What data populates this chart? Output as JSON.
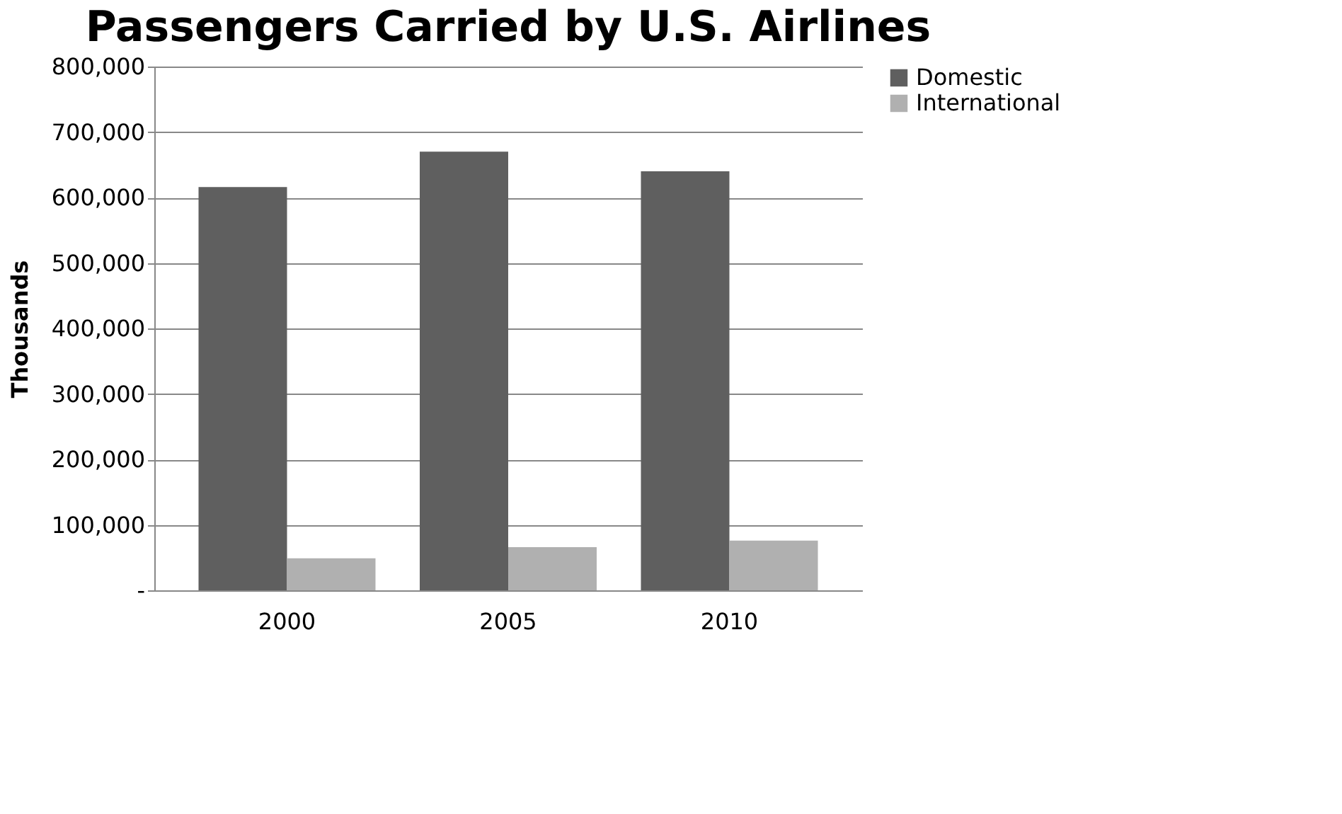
{
  "chart_data": {
    "type": "bar",
    "title": "Passengers Carried by U.S. Airlines",
    "ylabel": "Thousands",
    "categories": [
      "2000",
      "2005",
      "2010"
    ],
    "series": [
      {
        "name": "Domestic",
        "color": "#5f5f5f",
        "values": [
          616000,
          670000,
          640000
        ]
      },
      {
        "name": "International",
        "color": "#b0b0b0",
        "values": [
          49000,
          66000,
          76000
        ]
      }
    ],
    "ylim": [
      0,
      800000
    ],
    "yticks": [
      {
        "value": 0,
        "label": "-"
      },
      {
        "value": 100000,
        "label": "100,000"
      },
      {
        "value": 200000,
        "label": "200,000"
      },
      {
        "value": 300000,
        "label": "300,000"
      },
      {
        "value": 400000,
        "label": "400,000"
      },
      {
        "value": 500000,
        "label": "500,000"
      },
      {
        "value": 600000,
        "label": "600,000"
      },
      {
        "value": 700000,
        "label": "700,000"
      },
      {
        "value": 800000,
        "label": "800,000"
      }
    ],
    "grid": "y",
    "legend": "right"
  }
}
